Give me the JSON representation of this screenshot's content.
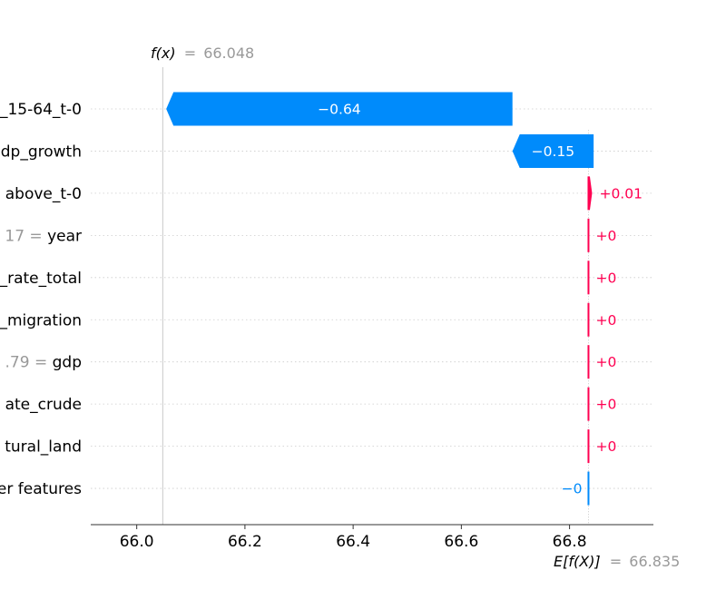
{
  "chart_data": {
    "type": "waterfall",
    "fx": {
      "symbol": "f(x)",
      "equals": "=",
      "value": "66.048"
    },
    "efx": {
      "symbol": "E[f(X)]",
      "equals": "=",
      "value": "66.835"
    },
    "base_value": 66.835,
    "output_value": 66.048,
    "xlim": [
      65.915,
      66.955
    ],
    "xticks": [
      {
        "value": 66.0,
        "label": "66.0"
      },
      {
        "value": 66.2,
        "label": "66.2"
      },
      {
        "value": 66.4,
        "label": "66.4"
      },
      {
        "value": 66.6,
        "label": "66.6"
      },
      {
        "value": 66.8,
        "label": "66.8"
      }
    ],
    "features": [
      {
        "value_text": "",
        "name": "_15-64_t-0",
        "contribution": -0.64,
        "label": "−0.64"
      },
      {
        "value_text": "",
        "name": "dp_growth",
        "contribution": -0.15,
        "label": "−0.15"
      },
      {
        "value_text": "",
        "name": "above_t-0",
        "contribution": 0.01,
        "label": "+0.01"
      },
      {
        "value_text": "17 =",
        "name": "year",
        "contribution": 0,
        "label": "+0"
      },
      {
        "value_text": "",
        "name": "_rate_total",
        "contribution": 0,
        "label": "+0"
      },
      {
        "value_text": "",
        "name": "_migration",
        "contribution": 0,
        "label": "+0"
      },
      {
        "value_text": ".79 =",
        "name": "gdp",
        "contribution": 0,
        "label": "+0"
      },
      {
        "value_text": "",
        "name": "ate_crude",
        "contribution": 0,
        "label": "+0"
      },
      {
        "value_text": "",
        "name": "tural_land",
        "contribution": 0,
        "label": "+0"
      },
      {
        "value_text": "",
        "name": "er features",
        "contribution": -0.0005,
        "label": "−0"
      }
    ],
    "colors": {
      "negative": "#008bfb",
      "positive": "#ff0051",
      "grey": "#999999",
      "axis": "#333333"
    }
  }
}
